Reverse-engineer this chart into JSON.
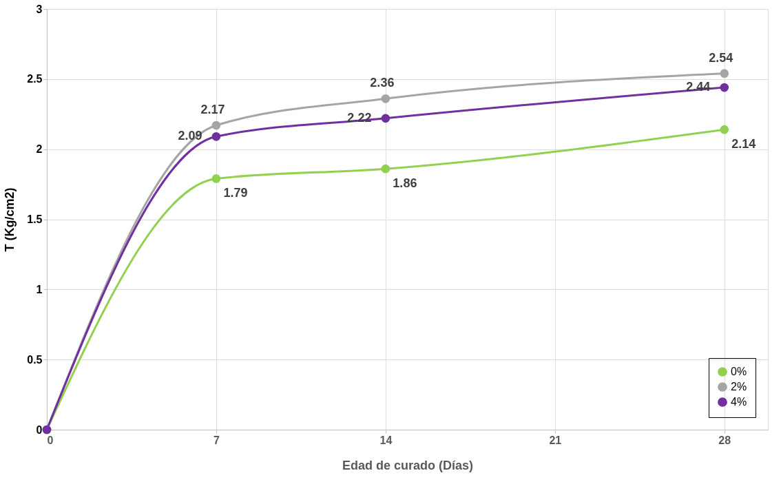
{
  "chart_data": {
    "type": "line",
    "xlabel": "Edad de curado (Días)",
    "ylabel": "T (Kg/cm2)",
    "x": [
      0,
      7,
      14,
      28
    ],
    "series": [
      {
        "name": "0%",
        "color": "#92d050",
        "values": [
          0,
          1.79,
          1.86,
          2.14
        ],
        "value_labels": [
          null,
          "1.79",
          "1.86",
          "2.14"
        ]
      },
      {
        "name": "2%",
        "color": "#a5a5a5",
        "values": [
          0,
          2.17,
          2.36,
          2.54
        ],
        "value_labels": [
          null,
          "2.17",
          "2.36",
          "2.54"
        ]
      },
      {
        "name": "4%",
        "color": "#7030a0",
        "values": [
          0,
          2.09,
          2.22,
          2.44
        ],
        "value_labels": [
          null,
          "2.09",
          "2.22",
          "2.44"
        ]
      }
    ],
    "xlim": [
      0,
      29.8
    ],
    "xticks": [
      0,
      7,
      14,
      21,
      28
    ],
    "ylim": [
      0,
      3
    ],
    "yticks": [
      0,
      0.5,
      1,
      1.5,
      2,
      2.5,
      3
    ],
    "grid": true,
    "legend": "bottom right",
    "marker": "circle",
    "line_style": "solid"
  }
}
